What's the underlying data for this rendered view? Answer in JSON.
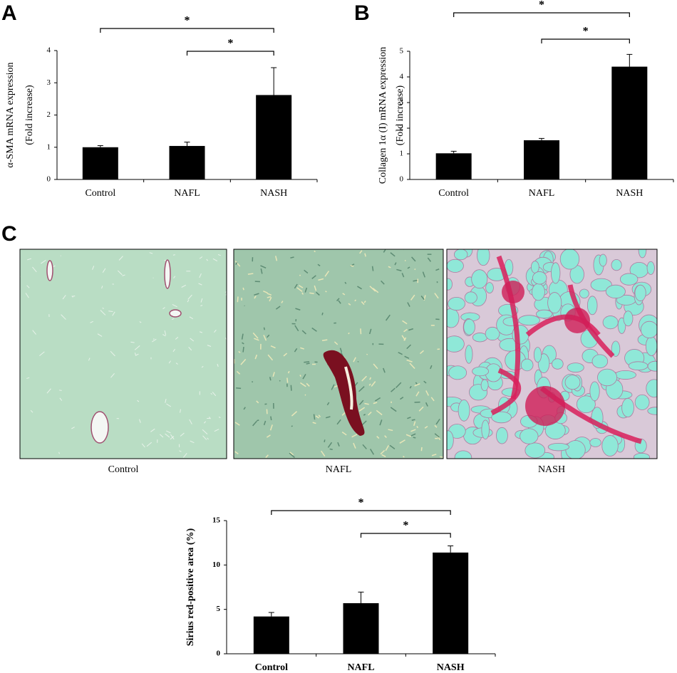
{
  "panel_labels": [
    "A",
    "B",
    "C"
  ],
  "images": [
    {
      "caption": "Control"
    },
    {
      "caption": "NAFL"
    },
    {
      "caption": "NASH"
    }
  ],
  "chart_data": [
    {
      "type": "bar",
      "categories": [
        "Control",
        "NAFL",
        "NASH"
      ],
      "values": [
        1.0,
        1.04,
        2.62
      ],
      "errors": [
        0.05,
        0.12,
        0.85
      ],
      "color": "#000000",
      "y_label": [
        "α-SMA mRNA expression",
        "(Fold increase)"
      ],
      "ylim": [
        0,
        4
      ],
      "yticks": [
        0,
        1,
        2,
        3,
        4
      ],
      "significance": [
        {
          "from": 0,
          "to": 2,
          "label": "*"
        },
        {
          "from": 1,
          "to": 2,
          "label": "*"
        }
      ]
    },
    {
      "type": "bar",
      "categories": [
        "Control",
        "NAFL",
        "NASH"
      ],
      "values": [
        1.02,
        1.53,
        4.4
      ],
      "errors": [
        0.08,
        0.07,
        0.48
      ],
      "color": "#000000",
      "y_label": [
        "Collagen 1α (I) mRNA expression",
        "(Fold increase)"
      ],
      "ylim": [
        0,
        5
      ],
      "yticks": [
        0,
        1,
        2,
        3,
        4,
        5
      ],
      "significance": [
        {
          "from": 0,
          "to": 2,
          "label": "*"
        },
        {
          "from": 1,
          "to": 2,
          "label": "*"
        }
      ]
    },
    {
      "type": "bar",
      "categories": [
        "Control",
        "NAFL",
        "NASH"
      ],
      "values": [
        4.2,
        5.7,
        11.4
      ],
      "errors": [
        0.45,
        1.25,
        0.75
      ],
      "color": "#000000",
      "y_label": [
        "Sirius red-positive area (%)"
      ],
      "ylim": [
        0,
        15
      ],
      "yticks": [
        0,
        5,
        10,
        15
      ],
      "significance": [
        {
          "from": 0,
          "to": 2,
          "label": "*"
        },
        {
          "from": 1,
          "to": 2,
          "label": "*"
        }
      ]
    }
  ]
}
